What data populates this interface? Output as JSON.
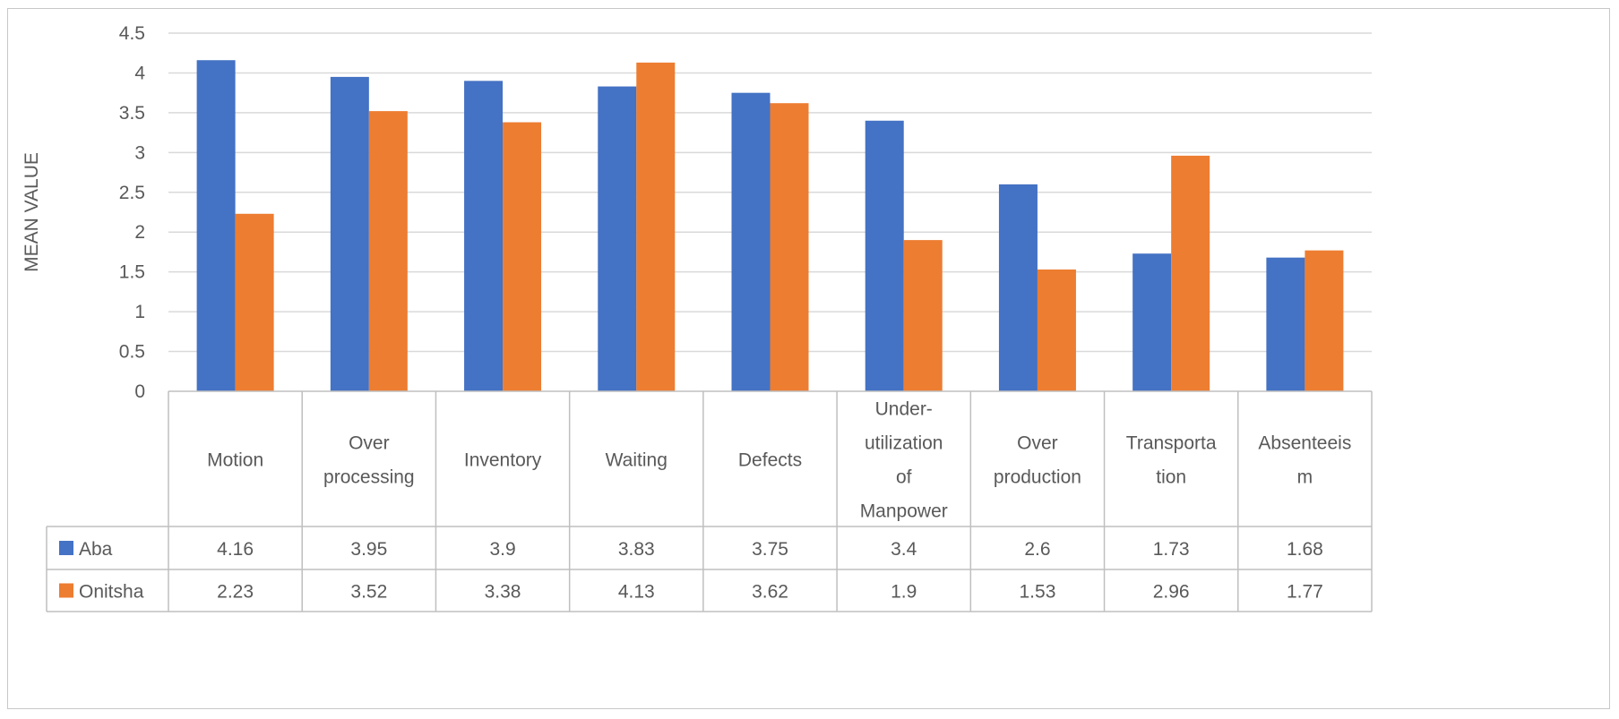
{
  "chart_data": {
    "type": "bar",
    "title": "",
    "ylabel": "MEAN VALUE",
    "xlabel": "",
    "ylim": [
      0,
      4.5
    ],
    "ytick_step": 0.5,
    "yticks": [
      "0",
      "0.5",
      "1",
      "1.5",
      "2",
      "2.5",
      "3",
      "3.5",
      "4",
      "4.5"
    ],
    "grid": true,
    "categories": [
      [
        "Motion"
      ],
      [
        "Over",
        "processing"
      ],
      [
        "Inventory"
      ],
      [
        "Waiting"
      ],
      [
        "Defects"
      ],
      [
        "Under-",
        "utilization",
        "of",
        "Manpower"
      ],
      [
        "Over",
        "production"
      ],
      [
        "Transporta",
        "tion"
      ],
      [
        "Absenteeis",
        "m"
      ]
    ],
    "series": [
      {
        "name": "Aba",
        "color": "#4472c4",
        "values": [
          4.16,
          3.95,
          3.9,
          3.83,
          3.75,
          3.4,
          2.6,
          1.73,
          1.68
        ],
        "labels": [
          "4.16",
          "3.95",
          "3.9",
          "3.83",
          "3.75",
          "3.4",
          "2.6",
          "1.73",
          "1.68"
        ]
      },
      {
        "name": "Onitsha",
        "color": "#ed7d31",
        "values": [
          2.23,
          3.52,
          3.38,
          4.13,
          3.62,
          1.9,
          1.53,
          2.96,
          1.77
        ],
        "labels": [
          "2.23",
          "3.52",
          "3.38",
          "4.13",
          "3.62",
          "1.9",
          "1.53",
          "2.96",
          "1.77"
        ]
      }
    ]
  },
  "colors": {
    "grid": "#d9d9d9",
    "table_border": "#bfbfbf",
    "text": "#595959"
  }
}
